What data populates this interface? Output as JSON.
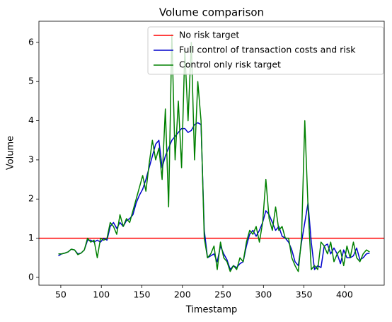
{
  "chart_data": {
    "type": "line",
    "title": "Volume comparison",
    "x_label": "Timestamp",
    "y_label": "Volume",
    "xlim": [
      23,
      449
    ],
    "ylim": [
      -0.2,
      6.54
    ],
    "xticks": [
      50,
      100,
      150,
      200,
      250,
      300,
      350,
      400
    ],
    "yticks": [
      0,
      1,
      2,
      3,
      4,
      5,
      6
    ],
    "legend": "upper right",
    "hline": {
      "name": "No risk target",
      "color": "red",
      "value": 1
    },
    "x": [
      47,
      51,
      55,
      59,
      63,
      67,
      71,
      75,
      79,
      83,
      87,
      91,
      95,
      99,
      103,
      107,
      111,
      115,
      119,
      123,
      127,
      131,
      135,
      139,
      143,
      147,
      151,
      155,
      159,
      163,
      167,
      171,
      175,
      179,
      183,
      187,
      191,
      195,
      199,
      203,
      207,
      211,
      215,
      219,
      223,
      227,
      231,
      235,
      239,
      243,
      247,
      251,
      255,
      259,
      263,
      267,
      271,
      275,
      279,
      283,
      287,
      291,
      295,
      299,
      303,
      307,
      311,
      315,
      319,
      323,
      327,
      331,
      335,
      339,
      343,
      347,
      351,
      355,
      359,
      363,
      367,
      371,
      375,
      379,
      383,
      387,
      391,
      395,
      399,
      403,
      407,
      411,
      415,
      419,
      423,
      427,
      431
    ],
    "series": [
      {
        "name": "Full control of transaction costs and risk",
        "color": "#0000cc",
        "values": [
          0.55,
          0.6,
          0.62,
          0.65,
          0.72,
          0.7,
          0.6,
          0.62,
          0.7,
          0.95,
          0.95,
          0.9,
          0.95,
          0.9,
          1.0,
          0.95,
          1.3,
          1.4,
          1.25,
          1.4,
          1.3,
          1.45,
          1.5,
          1.6,
          1.9,
          2.1,
          2.25,
          2.5,
          2.8,
          3.1,
          3.4,
          3.5,
          2.8,
          3.1,
          3.3,
          3.5,
          3.6,
          3.7,
          3.8,
          3.8,
          3.7,
          3.75,
          3.9,
          3.95,
          3.9,
          1.2,
          0.5,
          0.55,
          0.6,
          0.4,
          0.8,
          0.6,
          0.45,
          0.2,
          0.3,
          0.25,
          0.35,
          0.4,
          0.8,
          1.1,
          1.2,
          1.05,
          1.2,
          1.4,
          1.7,
          1.6,
          1.4,
          1.2,
          1.3,
          1.05,
          1.0,
          0.9,
          0.7,
          0.4,
          0.3,
          0.9,
          1.4,
          1.9,
          0.9,
          0.2,
          0.3,
          0.25,
          0.8,
          0.85,
          0.6,
          0.75,
          0.6,
          0.35,
          0.7,
          0.5,
          0.5,
          0.55,
          0.75,
          0.45,
          0.5,
          0.6,
          0.62
        ]
      },
      {
        "name": "Control only risk target",
        "color": "#008000",
        "values": [
          0.6,
          0.6,
          0.62,
          0.65,
          0.72,
          0.7,
          0.58,
          0.62,
          0.7,
          1.0,
          0.9,
          0.95,
          0.5,
          1.0,
          0.95,
          1.0,
          1.4,
          1.3,
          1.1,
          1.6,
          1.3,
          1.5,
          1.4,
          1.7,
          2.0,
          2.3,
          2.6,
          2.2,
          2.9,
          3.5,
          3.0,
          3.3,
          2.5,
          4.3,
          1.8,
          6.2,
          3.0,
          4.5,
          2.8,
          5.8,
          4.0,
          6.0,
          3.0,
          5.0,
          4.0,
          1.0,
          0.5,
          0.6,
          0.8,
          0.2,
          0.9,
          0.5,
          0.4,
          0.15,
          0.3,
          0.2,
          0.5,
          0.4,
          0.9,
          1.2,
          1.1,
          1.3,
          0.9,
          1.4,
          2.5,
          1.5,
          1.2,
          1.8,
          1.2,
          1.3,
          1.0,
          1.0,
          0.5,
          0.3,
          0.15,
          1.0,
          4.0,
          1.8,
          0.2,
          0.3,
          0.2,
          0.9,
          0.8,
          0.6,
          0.9,
          0.4,
          0.6,
          0.7,
          0.3,
          0.8,
          0.5,
          0.9,
          0.5,
          0.4,
          0.6,
          0.7,
          0.65
        ]
      }
    ]
  }
}
